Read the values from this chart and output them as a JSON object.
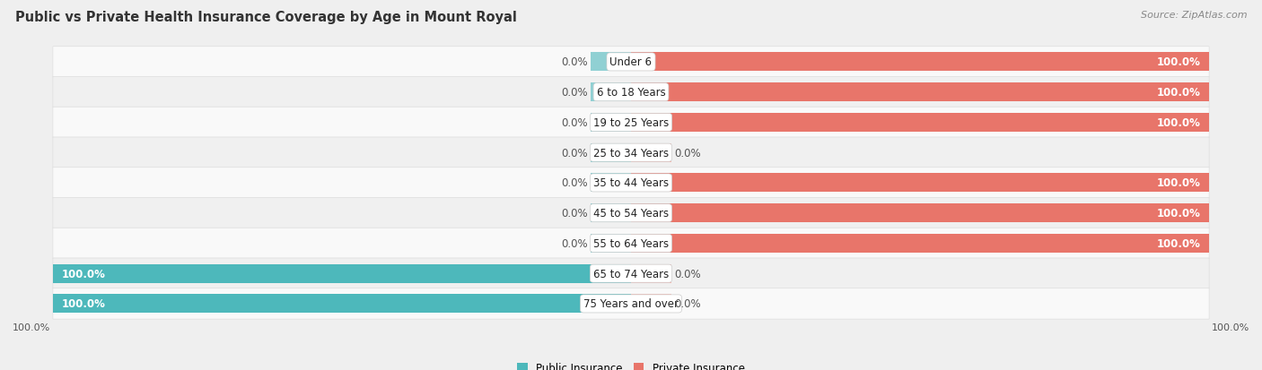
{
  "title": "Public vs Private Health Insurance Coverage by Age in Mount Royal",
  "source": "Source: ZipAtlas.com",
  "categories": [
    "Under 6",
    "6 to 18 Years",
    "19 to 25 Years",
    "25 to 34 Years",
    "35 to 44 Years",
    "45 to 54 Years",
    "55 to 64 Years",
    "65 to 74 Years",
    "75 Years and over"
  ],
  "public": [
    0.0,
    0.0,
    0.0,
    0.0,
    0.0,
    0.0,
    0.0,
    100.0,
    100.0
  ],
  "private": [
    100.0,
    100.0,
    100.0,
    0.0,
    100.0,
    100.0,
    100.0,
    0.0,
    0.0
  ],
  "public_color": "#4db8bb",
  "private_color": "#e8756a",
  "private_stub_color": "#f2b8b0",
  "public_stub_color": "#90d0d3",
  "background_color": "#efefef",
  "row_bg_even": "#f9f9f9",
  "row_bg_odd": "#f0f0f0",
  "bar_height": 0.62,
  "stub_size": 7.0,
  "title_fontsize": 10.5,
  "source_fontsize": 8,
  "label_fontsize": 8.5,
  "legend_fontsize": 8.5,
  "category_fontsize": 8.5,
  "val_label_color_inside": "#ffffff",
  "val_label_color_outside": "#555555"
}
